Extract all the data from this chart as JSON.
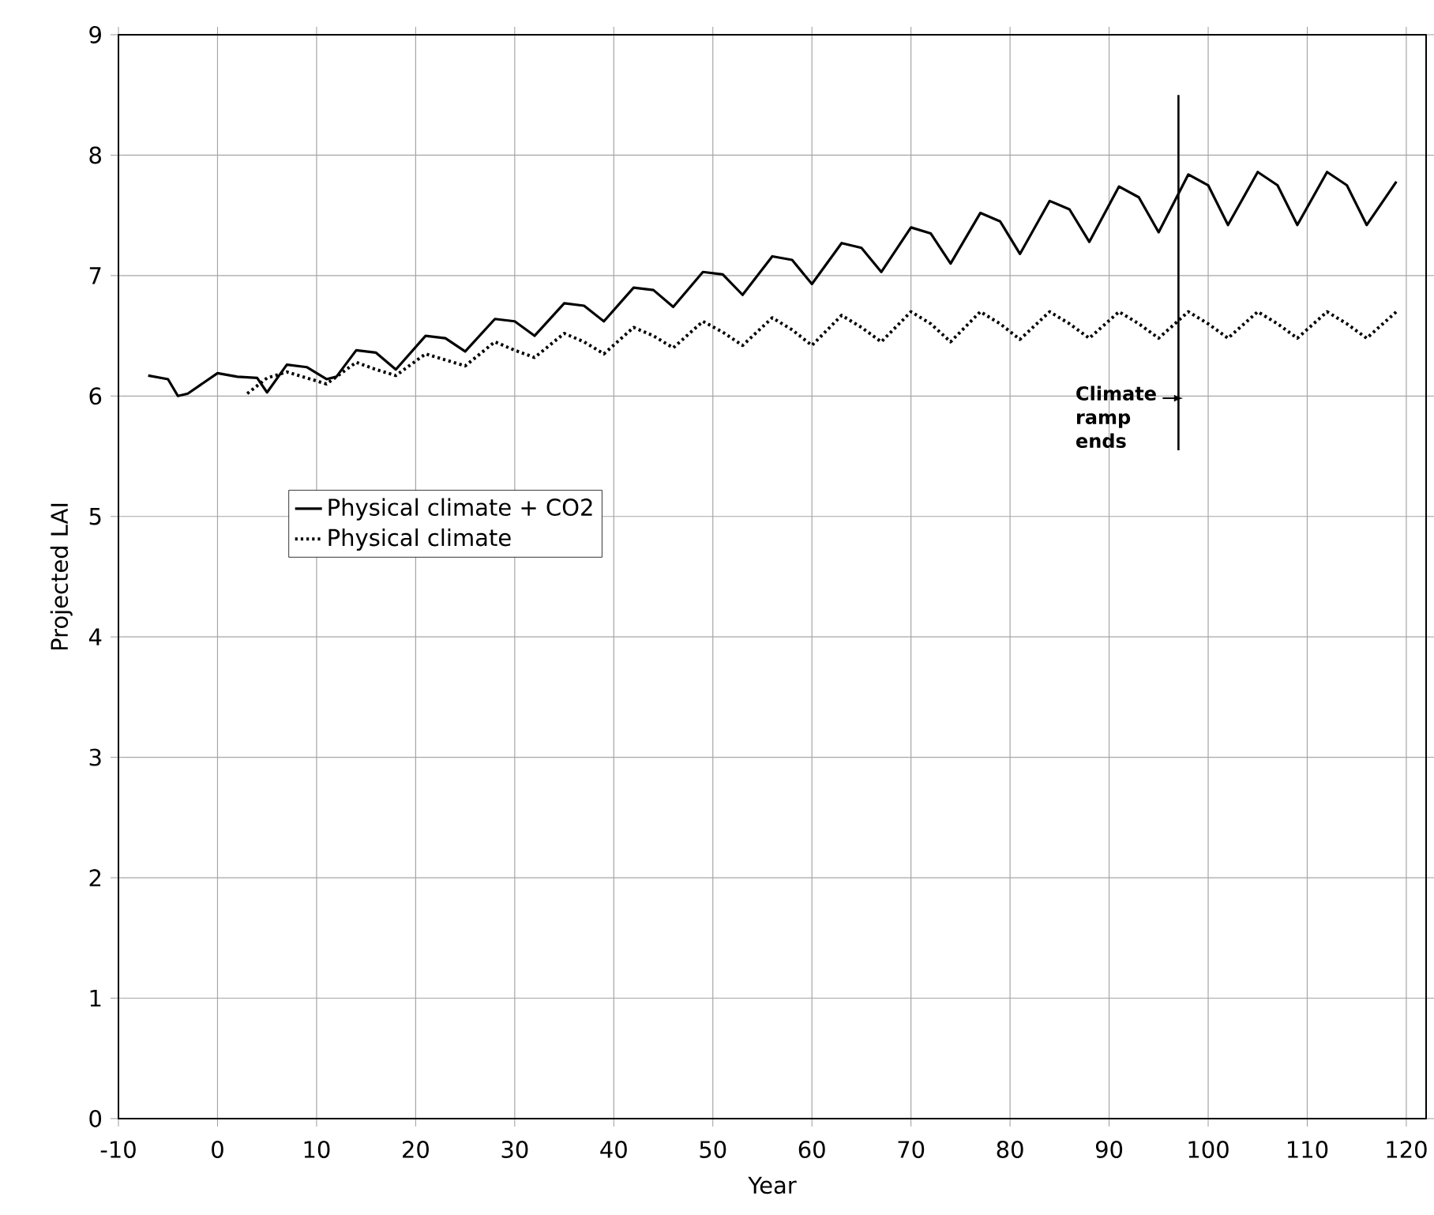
{
  "chart_data": {
    "type": "line",
    "xlabel": "Year",
    "ylabel": "Projected LAI",
    "xlim": [
      -10,
      122
    ],
    "ylim": [
      0,
      9
    ],
    "xticks": [
      -10,
      0,
      10,
      20,
      30,
      40,
      50,
      60,
      70,
      80,
      90,
      100,
      110,
      120
    ],
    "yticks": [
      0,
      1,
      2,
      3,
      4,
      5,
      6,
      7,
      8,
      9
    ],
    "grid": true,
    "legend": "left",
    "ref_lines": [
      {
        "axis": "x",
        "value": 97,
        "label": "Climate ramp ends"
      }
    ],
    "series": [
      {
        "name": "Physical climate + CO2",
        "color": "#000000",
        "line_style": "solid",
        "x": [
          -7,
          -5,
          -4,
          -3,
          0,
          2,
          4,
          5,
          7,
          9,
          11,
          12,
          14,
          16,
          18,
          21,
          23,
          25,
          28,
          30,
          32,
          35,
          37,
          39,
          42,
          44,
          46,
          49,
          51,
          53,
          56,
          58,
          60,
          63,
          65,
          67,
          70,
          72,
          74,
          77,
          79,
          81,
          84,
          86,
          88,
          91,
          93,
          95,
          98,
          100,
          102,
          105,
          107,
          109,
          112,
          114,
          116,
          119
        ],
        "values": [
          6.17,
          6.14,
          6.0,
          6.02,
          6.19,
          6.16,
          6.15,
          6.03,
          6.26,
          6.24,
          6.14,
          6.16,
          6.38,
          6.36,
          6.22,
          6.5,
          6.48,
          6.37,
          6.64,
          6.62,
          6.5,
          6.77,
          6.75,
          6.62,
          6.9,
          6.88,
          6.74,
          7.03,
          7.01,
          6.84,
          7.16,
          7.13,
          6.93,
          7.27,
          7.23,
          7.03,
          7.4,
          7.35,
          7.1,
          7.52,
          7.45,
          7.18,
          7.62,
          7.55,
          7.28,
          7.74,
          7.65,
          7.36,
          7.84,
          7.75,
          7.42,
          7.86,
          7.75,
          7.42,
          7.86,
          7.75,
          7.42,
          7.78
        ]
      },
      {
        "name": "Physical climate",
        "color": "#000000",
        "line_style": "dotted",
        "x": [
          3,
          5,
          7,
          9,
          11,
          14,
          16,
          18,
          21,
          23,
          25,
          28,
          30,
          32,
          35,
          37,
          39,
          42,
          44,
          46,
          49,
          51,
          53,
          56,
          58,
          60,
          63,
          65,
          67,
          70,
          72,
          74,
          77,
          79,
          81,
          84,
          86,
          88,
          91,
          93,
          95,
          98,
          100,
          102,
          105,
          107,
          109,
          112,
          114,
          116,
          119
        ],
        "values": [
          6.02,
          6.15,
          6.2,
          6.15,
          6.1,
          6.28,
          6.22,
          6.17,
          6.35,
          6.3,
          6.25,
          6.45,
          6.38,
          6.32,
          6.52,
          6.45,
          6.35,
          6.57,
          6.5,
          6.4,
          6.62,
          6.53,
          6.42,
          6.65,
          6.55,
          6.42,
          6.67,
          6.57,
          6.45,
          6.7,
          6.6,
          6.45,
          6.7,
          6.6,
          6.47,
          6.7,
          6.6,
          6.48,
          6.7,
          6.6,
          6.48,
          6.7,
          6.6,
          6.48,
          6.7,
          6.6,
          6.48,
          6.7,
          6.6,
          6.48,
          6.7
        ]
      }
    ]
  }
}
